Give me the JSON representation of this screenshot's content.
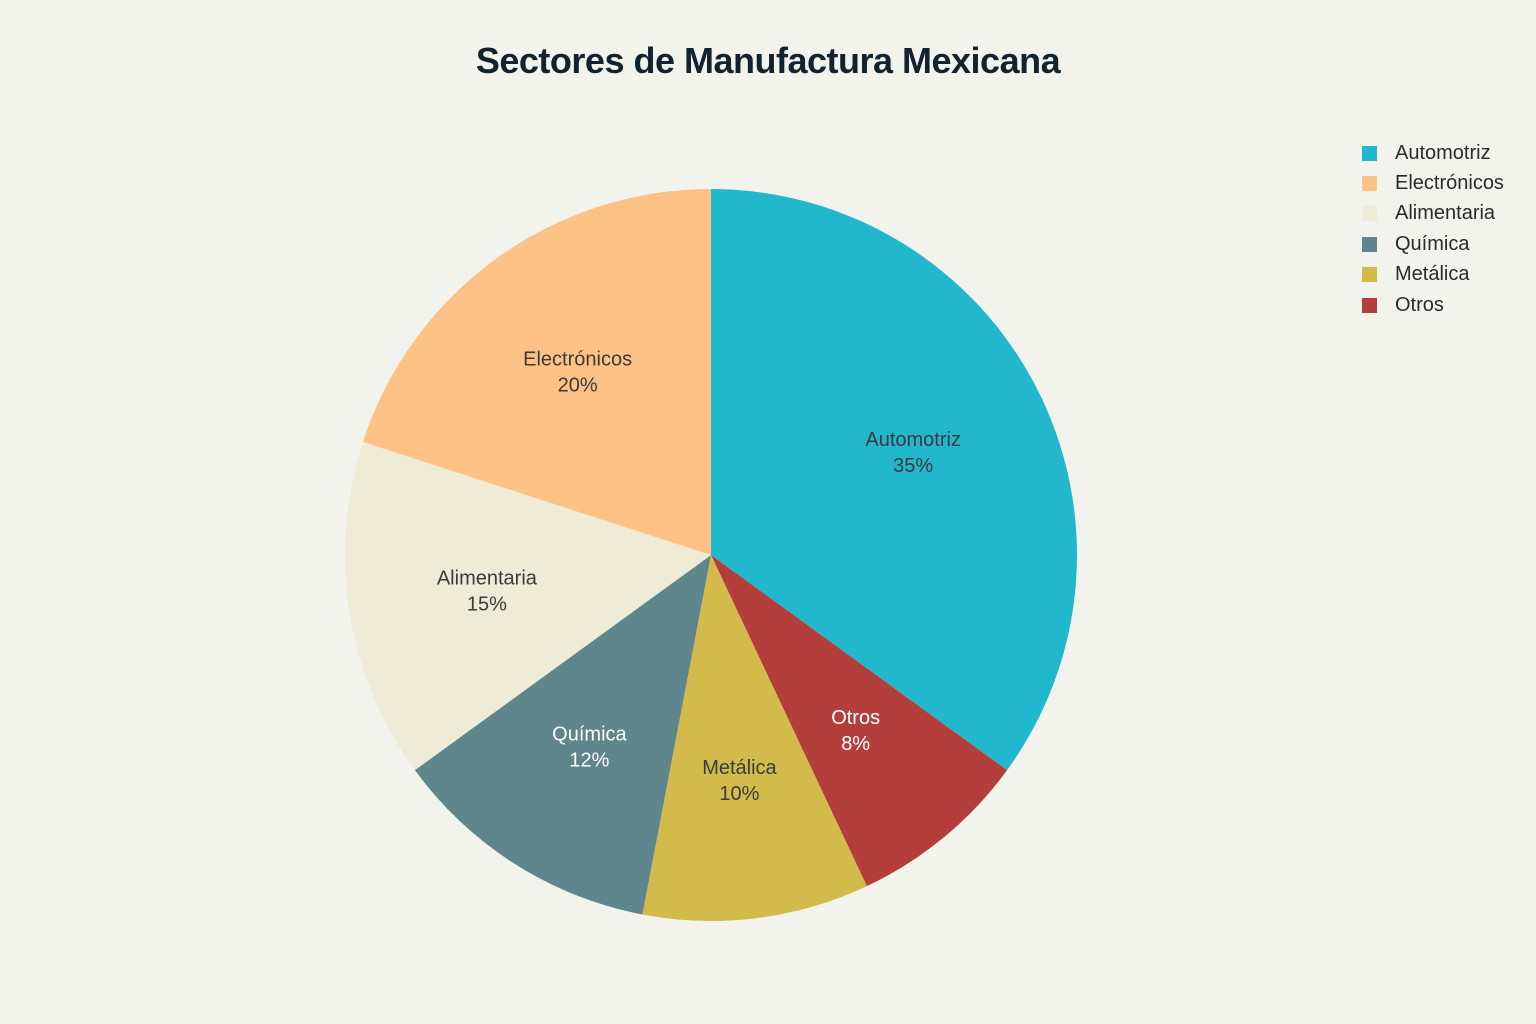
{
  "chart_data": {
    "type": "pie",
    "title": "Sectores de Manufactura Mexicana",
    "legend_position": "top-right",
    "slices": [
      {
        "label": "Automotriz",
        "value": 35,
        "value_label": "35%",
        "color": "#21b8cd",
        "text_color": "#3b3b3b"
      },
      {
        "label": "Otros",
        "value": 8,
        "value_label": "8%",
        "color": "#b43e3b",
        "text_color": "#ffffff"
      },
      {
        "label": "Metálica",
        "value": 10,
        "value_label": "10%",
        "color": "#d2bb4a",
        "text_color": "#3b3b3b"
      },
      {
        "label": "Química",
        "value": 12,
        "value_label": "12%",
        "color": "#5e868c",
        "text_color": "#ffffff"
      },
      {
        "label": "Alimentaria",
        "value": 15,
        "value_label": "15%",
        "color": "#eeebd6",
        "text_color": "#3b3b3b"
      },
      {
        "label": "Electrónicos",
        "value": 20,
        "value_label": "20%",
        "color": "#fec186",
        "text_color": "#3b3b3b"
      }
    ],
    "legend": [
      {
        "label": "Automotriz",
        "color": "#21b8cd"
      },
      {
        "label": "Electrónicos",
        "color": "#fec186"
      },
      {
        "label": "Alimentaria",
        "color": "#eeebd6"
      },
      {
        "label": "Química",
        "color": "#5e868c"
      },
      {
        "label": "Metálica",
        "color": "#d2bb4a"
      },
      {
        "label": "Otros",
        "color": "#b43e3b"
      }
    ]
  }
}
